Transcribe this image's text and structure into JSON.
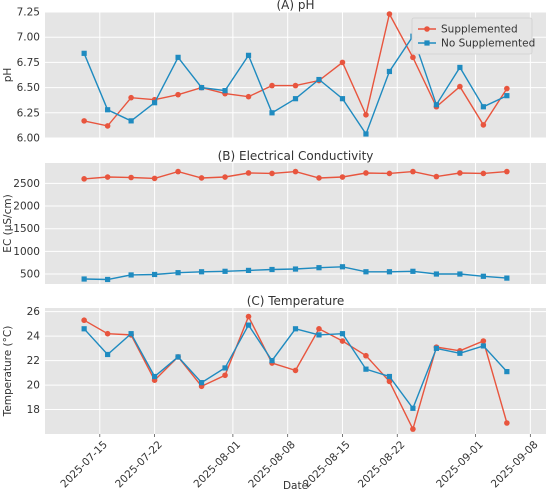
{
  "chart_data": [
    {
      "type": "line",
      "title": "(A) pH",
      "xlabel": "",
      "ylabel": "pH",
      "ylim": [
        6.0,
        7.25
      ],
      "yticks": [
        6.0,
        6.25,
        6.5,
        6.75,
        7.0,
        7.25
      ],
      "ytick_labels": [
        "6.00",
        "6.25",
        "6.50",
        "6.75",
        "7.00",
        "7.25"
      ],
      "x_dates": [
        "2025-07-13",
        "2025-07-16",
        "2025-07-19",
        "2025-07-22",
        "2025-07-25",
        "2025-07-28",
        "2025-07-31",
        "2025-08-03",
        "2025-08-06",
        "2025-08-09",
        "2025-08-12",
        "2025-08-15",
        "2025-08-18",
        "2025-08-21",
        "2025-08-24",
        "2025-08-27",
        "2025-08-30",
        "2025-09-02",
        "2025-09-05"
      ],
      "legend": {
        "position": "top-right"
      },
      "grid": true,
      "series": [
        {
          "name": "Supplemented",
          "color": "#e8553e",
          "marker": "circle",
          "values": [
            6.17,
            6.12,
            6.4,
            6.38,
            6.43,
            6.5,
            6.44,
            6.41,
            6.52,
            6.52,
            6.57,
            6.75,
            6.23,
            7.23,
            6.8,
            6.31,
            6.51,
            6.13,
            6.49
          ]
        },
        {
          "name": "No Supplemented",
          "color": "#1f8bc0",
          "marker": "square",
          "values": [
            6.84,
            6.28,
            6.17,
            6.35,
            6.8,
            6.5,
            6.47,
            6.82,
            6.25,
            6.39,
            6.58,
            6.39,
            6.04,
            6.66,
            7.01,
            6.33,
            6.7,
            6.31,
            6.42
          ]
        }
      ]
    },
    {
      "type": "line",
      "title": "(B) Electrical Conductivity",
      "xlabel": "",
      "ylabel": "EC (μS/cm)",
      "ylim": [
        280,
        2950
      ],
      "yticks": [
        500,
        1000,
        1500,
        2000,
        2500
      ],
      "ytick_labels": [
        "500",
        "1000",
        "1500",
        "2000",
        "2500"
      ],
      "x_dates": [
        "2025-07-13",
        "2025-07-16",
        "2025-07-19",
        "2025-07-22",
        "2025-07-25",
        "2025-07-28",
        "2025-07-31",
        "2025-08-03",
        "2025-08-06",
        "2025-08-09",
        "2025-08-12",
        "2025-08-15",
        "2025-08-18",
        "2025-08-21",
        "2025-08-24",
        "2025-08-27",
        "2025-08-30",
        "2025-09-02",
        "2025-09-05"
      ],
      "grid": true,
      "series": [
        {
          "color": "#e8553e",
          "marker": "circle",
          "values": [
            2600,
            2640,
            2630,
            2610,
            2760,
            2620,
            2640,
            2730,
            2720,
            2760,
            2620,
            2640,
            2730,
            2720,
            2760,
            2650,
            2730,
            2720,
            2760
          ]
        },
        {
          "color": "#1f8bc0",
          "marker": "square",
          "values": [
            390,
            380,
            480,
            490,
            530,
            550,
            560,
            580,
            600,
            610,
            640,
            660,
            550,
            550,
            560,
            500,
            500,
            450,
            410
          ]
        }
      ]
    },
    {
      "type": "line",
      "title": "(C) Temperature",
      "xlabel": "Date",
      "ylabel": "Temperature (°C)",
      "ylim": [
        16.0,
        26.3
      ],
      "yticks": [
        18,
        20,
        22,
        24,
        26
      ],
      "ytick_labels": [
        "18",
        "20",
        "22",
        "24",
        "26"
      ],
      "xtick_labels": [
        "2025-07-15",
        "2025-07-22",
        "2025-08-01",
        "2025-08-08",
        "2025-08-15",
        "2025-08-22",
        "2025-09-01",
        "2025-09-08"
      ],
      "x_dates": [
        "2025-07-13",
        "2025-07-16",
        "2025-07-19",
        "2025-07-22",
        "2025-07-25",
        "2025-07-28",
        "2025-07-31",
        "2025-08-03",
        "2025-08-06",
        "2025-08-09",
        "2025-08-12",
        "2025-08-15",
        "2025-08-18",
        "2025-08-21",
        "2025-08-24",
        "2025-08-27",
        "2025-08-30",
        "2025-09-02",
        "2025-09-05"
      ],
      "grid": true,
      "series": [
        {
          "color": "#e8553e",
          "marker": "circle",
          "values": [
            25.3,
            24.2,
            24.1,
            20.4,
            22.3,
            19.9,
            20.8,
            25.6,
            21.8,
            21.2,
            24.6,
            23.6,
            22.4,
            20.3,
            16.4,
            23.1,
            22.8,
            23.6,
            16.9
          ]
        },
        {
          "color": "#1f8bc0",
          "marker": "square",
          "values": [
            24.6,
            22.5,
            24.2,
            20.7,
            22.3,
            20.2,
            21.4,
            24.9,
            22.0,
            24.6,
            24.1,
            24.2,
            21.3,
            20.7,
            18.1,
            23.0,
            22.6,
            23.2,
            21.1
          ]
        }
      ]
    }
  ]
}
